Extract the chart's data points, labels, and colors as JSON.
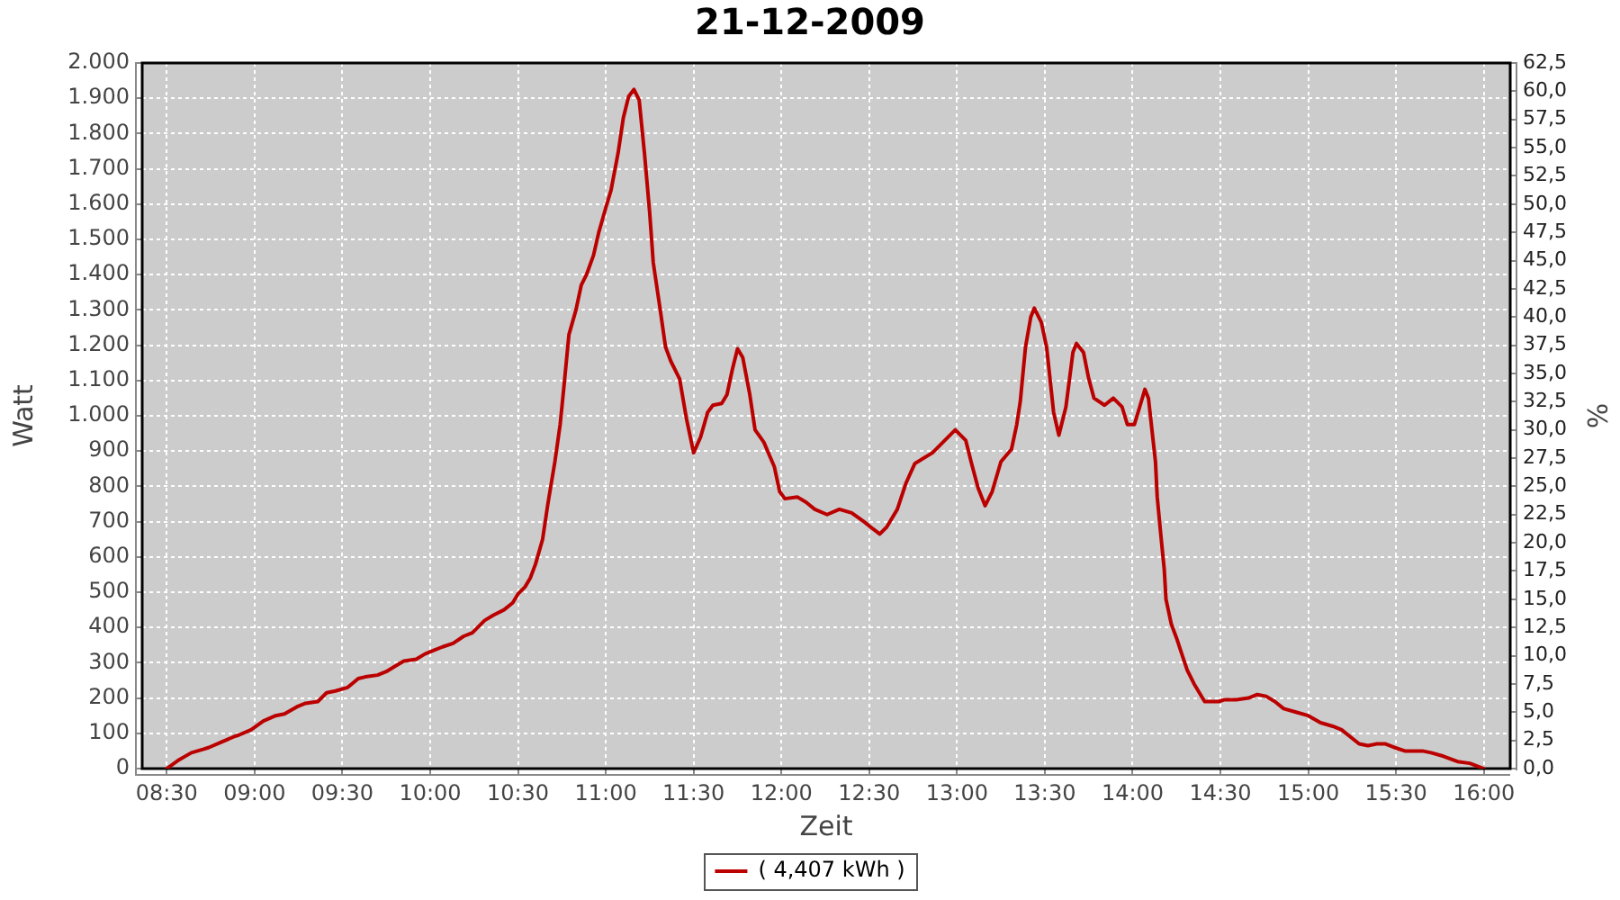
{
  "chart_data": {
    "type": "line",
    "title": "21-12-2009",
    "xlabel": "Zeit",
    "ylabel": "Watt",
    "y2label": "%",
    "x": [
      8.5,
      8.57,
      8.64,
      8.71,
      8.74,
      8.81,
      8.88,
      8.91,
      8.98,
      9.05,
      9.12,
      9.17,
      9.24,
      9.29,
      9.36,
      9.41,
      9.46,
      9.53,
      9.59,
      9.63,
      9.7,
      9.75,
      9.8,
      9.85,
      9.92,
      9.97,
      10.02,
      10.07,
      10.13,
      10.19,
      10.24,
      10.31,
      10.36,
      10.42,
      10.47,
      10.5,
      10.54,
      10.57,
      10.6,
      10.64,
      10.67,
      10.71,
      10.74,
      10.76,
      10.79,
      10.83,
      10.86,
      10.89,
      10.93,
      10.96,
      11,
      11.03,
      11.07,
      11.1,
      11.13,
      11.16,
      11.19,
      11.22,
      11.25,
      11.27,
      11.31,
      11.34,
      11.37,
      11.42,
      11.46,
      11.5,
      11.54,
      11.58,
      11.61,
      11.66,
      11.69,
      11.72,
      11.75,
      11.78,
      11.82,
      11.85,
      11.9,
      11.96,
      11.99,
      12.02,
      12.09,
      12.14,
      12.19,
      12.26,
      12.33,
      12.4,
      12.47,
      12.52,
      12.56,
      12.6,
      12.66,
      12.71,
      12.76,
      12.81,
      12.86,
      12.93,
      12.99,
      13.05,
      13.08,
      13.12,
      13.16,
      13.2,
      13.25,
      13.31,
      13.34,
      13.36,
      13.39,
      13.42,
      13.44,
      13.48,
      13.51,
      13.55,
      13.58,
      13.62,
      13.66,
      13.68,
      13.72,
      13.75,
      13.78,
      13.84,
      13.89,
      13.94,
      13.97,
      14.01,
      14.04,
      14.07,
      14.09,
      14.11,
      14.13,
      14.14,
      14.16,
      14.18,
      14.19,
      14.22,
      14.25,
      14.28,
      14.31,
      14.35,
      14.38,
      14.41,
      14.49,
      14.52,
      14.59,
      14.66,
      14.71,
      14.76,
      14.81,
      14.86,
      14.93,
      15,
      15.07,
      15.14,
      15.19,
      15.24,
      15.29,
      15.34,
      15.39,
      15.44,
      15.49,
      15.55,
      15.65,
      15.7,
      15.77,
      15.85,
      15.92,
      16
    ],
    "series": [
      {
        "name": "( 4,407 kWh )",
        "color": "#bb0000",
        "values": [
          0,
          25,
          45,
          55,
          60,
          75,
          90,
          95,
          110,
          135,
          150,
          155,
          175,
          185,
          190,
          215,
          220,
          230,
          255,
          260,
          265,
          275,
          290,
          305,
          310,
          325,
          335,
          345,
          355,
          375,
          385,
          420,
          435,
          450,
          470,
          495,
          515,
          540,
          580,
          650,
          750,
          870,
          975,
          1075,
          1230,
          1300,
          1370,
          1400,
          1455,
          1520,
          1590,
          1640,
          1745,
          1845,
          1905,
          1925,
          1895,
          1745,
          1575,
          1435,
          1300,
          1195,
          1155,
          1105,
          990,
          895,
          940,
          1010,
          1030,
          1035,
          1060,
          1130,
          1190,
          1165,
          1060,
          960,
          925,
          855,
          785,
          765,
          770,
          755,
          735,
          720,
          735,
          725,
          700,
          680,
          665,
          685,
          735,
          810,
          865,
          880,
          895,
          930,
          960,
          930,
          870,
          795,
          745,
          785,
          870,
          905,
          975,
          1040,
          1195,
          1280,
          1305,
          1265,
          1195,
          1010,
          945,
          1025,
          1180,
          1205,
          1180,
          1105,
          1050,
          1030,
          1050,
          1025,
          975,
          975,
          1025,
          1075,
          1050,
          960,
          870,
          770,
          665,
          565,
          480,
          410,
          370,
          325,
          280,
          240,
          215,
          190,
          190,
          195,
          195,
          200,
          210,
          205,
          190,
          170,
          160,
          150,
          130,
          120,
          110,
          90,
          70,
          65,
          70,
          70,
          60,
          50,
          50,
          45,
          35,
          20,
          15,
          0
        ]
      }
    ],
    "xlim": [
      8.36,
      16.15
    ],
    "xticks": [
      {
        "value": 8.5,
        "label": "08:30"
      },
      {
        "value": 9,
        "label": "09:00"
      },
      {
        "value": 9.5,
        "label": "09:30"
      },
      {
        "value": 10,
        "label": "10:00"
      },
      {
        "value": 10.5,
        "label": "10:30"
      },
      {
        "value": 11,
        "label": "11:00"
      },
      {
        "value": 11.5,
        "label": "11:30"
      },
      {
        "value": 12,
        "label": "12:00"
      },
      {
        "value": 12.5,
        "label": "12:30"
      },
      {
        "value": 13,
        "label": "13:00"
      },
      {
        "value": 13.5,
        "label": "13:30"
      },
      {
        "value": 14,
        "label": "14:00"
      },
      {
        "value": 14.5,
        "label": "14:30"
      },
      {
        "value": 15,
        "label": "15:00"
      },
      {
        "value": 15.5,
        "label": "15:30"
      },
      {
        "value": 16,
        "label": "16:00"
      }
    ],
    "ylim": [
      0,
      2000
    ],
    "yticks": [
      0,
      100,
      200,
      300,
      400,
      500,
      600,
      700,
      800,
      900,
      {
        "value": 1000,
        "label": "1.000"
      },
      {
        "value": 1100,
        "label": "1.100"
      },
      {
        "value": 1200,
        "label": "1.200"
      },
      {
        "value": 1300,
        "label": "1.300"
      },
      {
        "value": 1400,
        "label": "1.400"
      },
      {
        "value": 1500,
        "label": "1.500"
      },
      {
        "value": 1600,
        "label": "1.600"
      },
      {
        "value": 1700,
        "label": "1.700"
      },
      {
        "value": 1800,
        "label": "1.800"
      },
      {
        "value": 1900,
        "label": "1.900"
      },
      {
        "value": 2000,
        "label": "2.000"
      }
    ],
    "y2lim": [
      0,
      62.5
    ],
    "y2ticks": [
      {
        "value": 0,
        "label": "0,0"
      },
      {
        "value": 2.5,
        "label": "2,5"
      },
      {
        "value": 5,
        "label": "5,0"
      },
      {
        "value": 7.5,
        "label": "7,5"
      },
      {
        "value": 10,
        "label": "10,0"
      },
      {
        "value": 12.5,
        "label": "12,5"
      },
      {
        "value": 15,
        "label": "15,0"
      },
      {
        "value": 17.5,
        "label": "17,5"
      },
      {
        "value": 20,
        "label": "20,0"
      },
      {
        "value": 22.5,
        "label": "22,5"
      },
      {
        "value": 25,
        "label": "25,0"
      },
      {
        "value": 27.5,
        "label": "27,5"
      },
      {
        "value": 30,
        "label": "30,0"
      },
      {
        "value": 32.5,
        "label": "32,5"
      },
      {
        "value": 35,
        "label": "35,0"
      },
      {
        "value": 37.5,
        "label": "37,5"
      },
      {
        "value": 40,
        "label": "40,0"
      },
      {
        "value": 42.5,
        "label": "42,5"
      },
      {
        "value": 45,
        "label": "45,0"
      },
      {
        "value": 47.5,
        "label": "47,5"
      },
      {
        "value": 50,
        "label": "50,0"
      },
      {
        "value": 52.5,
        "label": "52,5"
      },
      {
        "value": 55,
        "label": "55,0"
      },
      {
        "value": 57.5,
        "label": "57,5"
      },
      {
        "value": 60,
        "label": "60,0"
      },
      {
        "value": 62.5,
        "label": "62,5"
      }
    ],
    "grid": true,
    "legend": "bottom",
    "marker": "none",
    "line_style": "solid"
  }
}
